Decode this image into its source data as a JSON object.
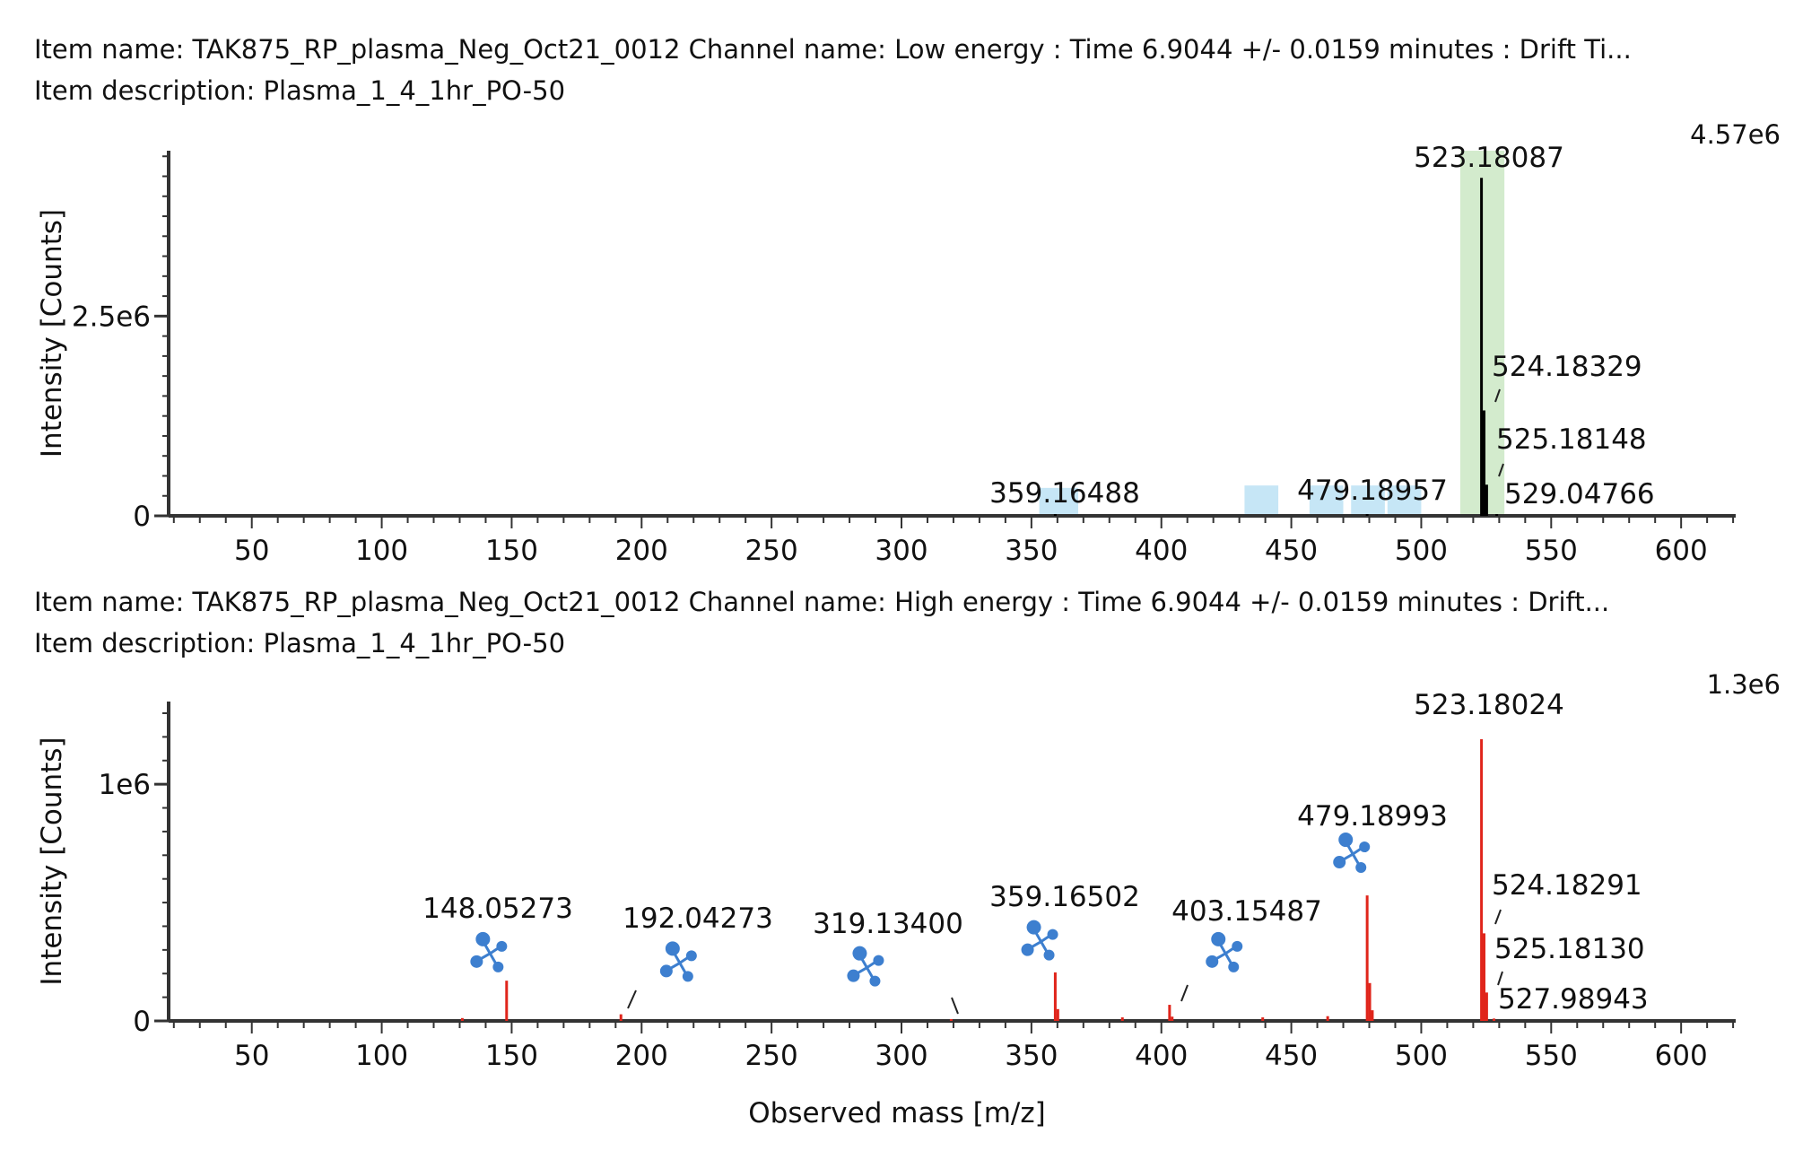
{
  "chart_data": [
    {
      "type": "bar",
      "item_name_line": "Item name: TAK875_RP_plasma_Neg_Oct21_0012 Channel name: Low energy : Time 6.9044 +/- 0.0159 minutes : Drift Ti...",
      "item_description_line": "Item description: Plasma_1_4_1hr_PO-50",
      "ylabel": "Intensity [Counts]",
      "max_label": "4.57e6",
      "ymax": 4570000,
      "xlim": [
        18,
        621
      ],
      "ylim": [
        0,
        4570000
      ],
      "x_ticks": [
        50,
        100,
        150,
        200,
        250,
        300,
        350,
        400,
        450,
        500,
        550,
        600
      ],
      "y_ticks": [
        {
          "value": 0,
          "label": "0"
        },
        {
          "value": 2500000,
          "label": "2.5e6"
        }
      ],
      "bar_color": "#000000",
      "highlights": [
        {
          "x0": 353,
          "x1": 368,
          "ymax": 350000,
          "color": "#c6e6f6"
        },
        {
          "x0": 432,
          "x1": 445,
          "ymax": 380000,
          "color": "#c6e6f6"
        },
        {
          "x0": 457,
          "x1": 470,
          "ymax": 380000,
          "color": "#c6e6f6"
        },
        {
          "x0": 473,
          "x1": 486,
          "ymax": 380000,
          "color": "#c6e6f6"
        },
        {
          "x0": 487,
          "x1": 500,
          "ymax": 380000,
          "color": "#c6e6f6"
        },
        {
          "x0": 515,
          "x1": 532,
          "ymax": 4600000,
          "color": "#d3ebcd"
        }
      ],
      "peaks": [
        {
          "x": 359.16488,
          "y": 8000,
          "label": "359.16488"
        },
        {
          "x": 479.18957,
          "y": 12000,
          "label": "479.18957"
        },
        {
          "x": 523.18087,
          "y": 4230000,
          "label": "523.18087"
        },
        {
          "x": 524.18329,
          "y": 1320000,
          "label": "524.18329"
        },
        {
          "x": 525.18148,
          "y": 390000,
          "label": "525.18148"
        },
        {
          "x": 529.04766,
          "y": 20000,
          "label": "529.04766"
        }
      ]
    },
    {
      "type": "bar",
      "item_name_line": "Item name: TAK875_RP_plasma_Neg_Oct21_0012    Channel name: High energy : Time 6.9044 +/- 0.0159 minutes : Drift...",
      "item_description_line": "Item description: Plasma_1_4_1hr_PO-50",
      "ylabel": "Intensity [Counts]",
      "max_label": "1.3e6",
      "ymax": 1300000,
      "xlim": [
        18,
        621
      ],
      "ylim": [
        0,
        1300000
      ],
      "x_ticks": [
        50,
        100,
        150,
        200,
        250,
        300,
        350,
        400,
        450,
        500,
        550,
        600
      ],
      "y_ticks": [
        {
          "value": 0,
          "label": "0"
        },
        {
          "value": 1000000,
          "label": "1e6"
        }
      ],
      "bar_color": "#e0251b",
      "xlabel": "Observed mass [m/z]",
      "peaks": [
        {
          "x": 131.0,
          "y": 12000,
          "label": ""
        },
        {
          "x": 148.05273,
          "y": 170000,
          "label": "148.05273"
        },
        {
          "x": 192.04273,
          "y": 28000,
          "label": "192.04273"
        },
        {
          "x": 319.134,
          "y": 5000,
          "label": "319.13400"
        },
        {
          "x": 359.16502,
          "y": 205000,
          "label": "359.16502"
        },
        {
          "x": 360.17,
          "y": 50000,
          "label": ""
        },
        {
          "x": 385.0,
          "y": 15000,
          "label": ""
        },
        {
          "x": 403.15487,
          "y": 68000,
          "label": "403.15487"
        },
        {
          "x": 404.16,
          "y": 18000,
          "label": ""
        },
        {
          "x": 439.0,
          "y": 15000,
          "label": ""
        },
        {
          "x": 464.0,
          "y": 20000,
          "label": ""
        },
        {
          "x": 479.18993,
          "y": 530000,
          "label": "479.18993"
        },
        {
          "x": 480.19,
          "y": 160000,
          "label": ""
        },
        {
          "x": 481.19,
          "y": 45000,
          "label": ""
        },
        {
          "x": 523.18024,
          "y": 1190000,
          "label": "523.18024"
        },
        {
          "x": 524.18291,
          "y": 370000,
          "label": "524.18291"
        },
        {
          "x": 525.1813,
          "y": 120000,
          "label": "525.18130"
        },
        {
          "x": 527.98943,
          "y": 10000,
          "label": "527.98943"
        }
      ],
      "fragment_icons": [
        {
          "x": 141,
          "y": 300000
        },
        {
          "x": 214,
          "y": 260000
        },
        {
          "x": 286,
          "y": 240000
        },
        {
          "x": 353,
          "y": 350000
        },
        {
          "x": 424,
          "y": 300000
        },
        {
          "x": 473,
          "y": 720000
        }
      ]
    }
  ]
}
